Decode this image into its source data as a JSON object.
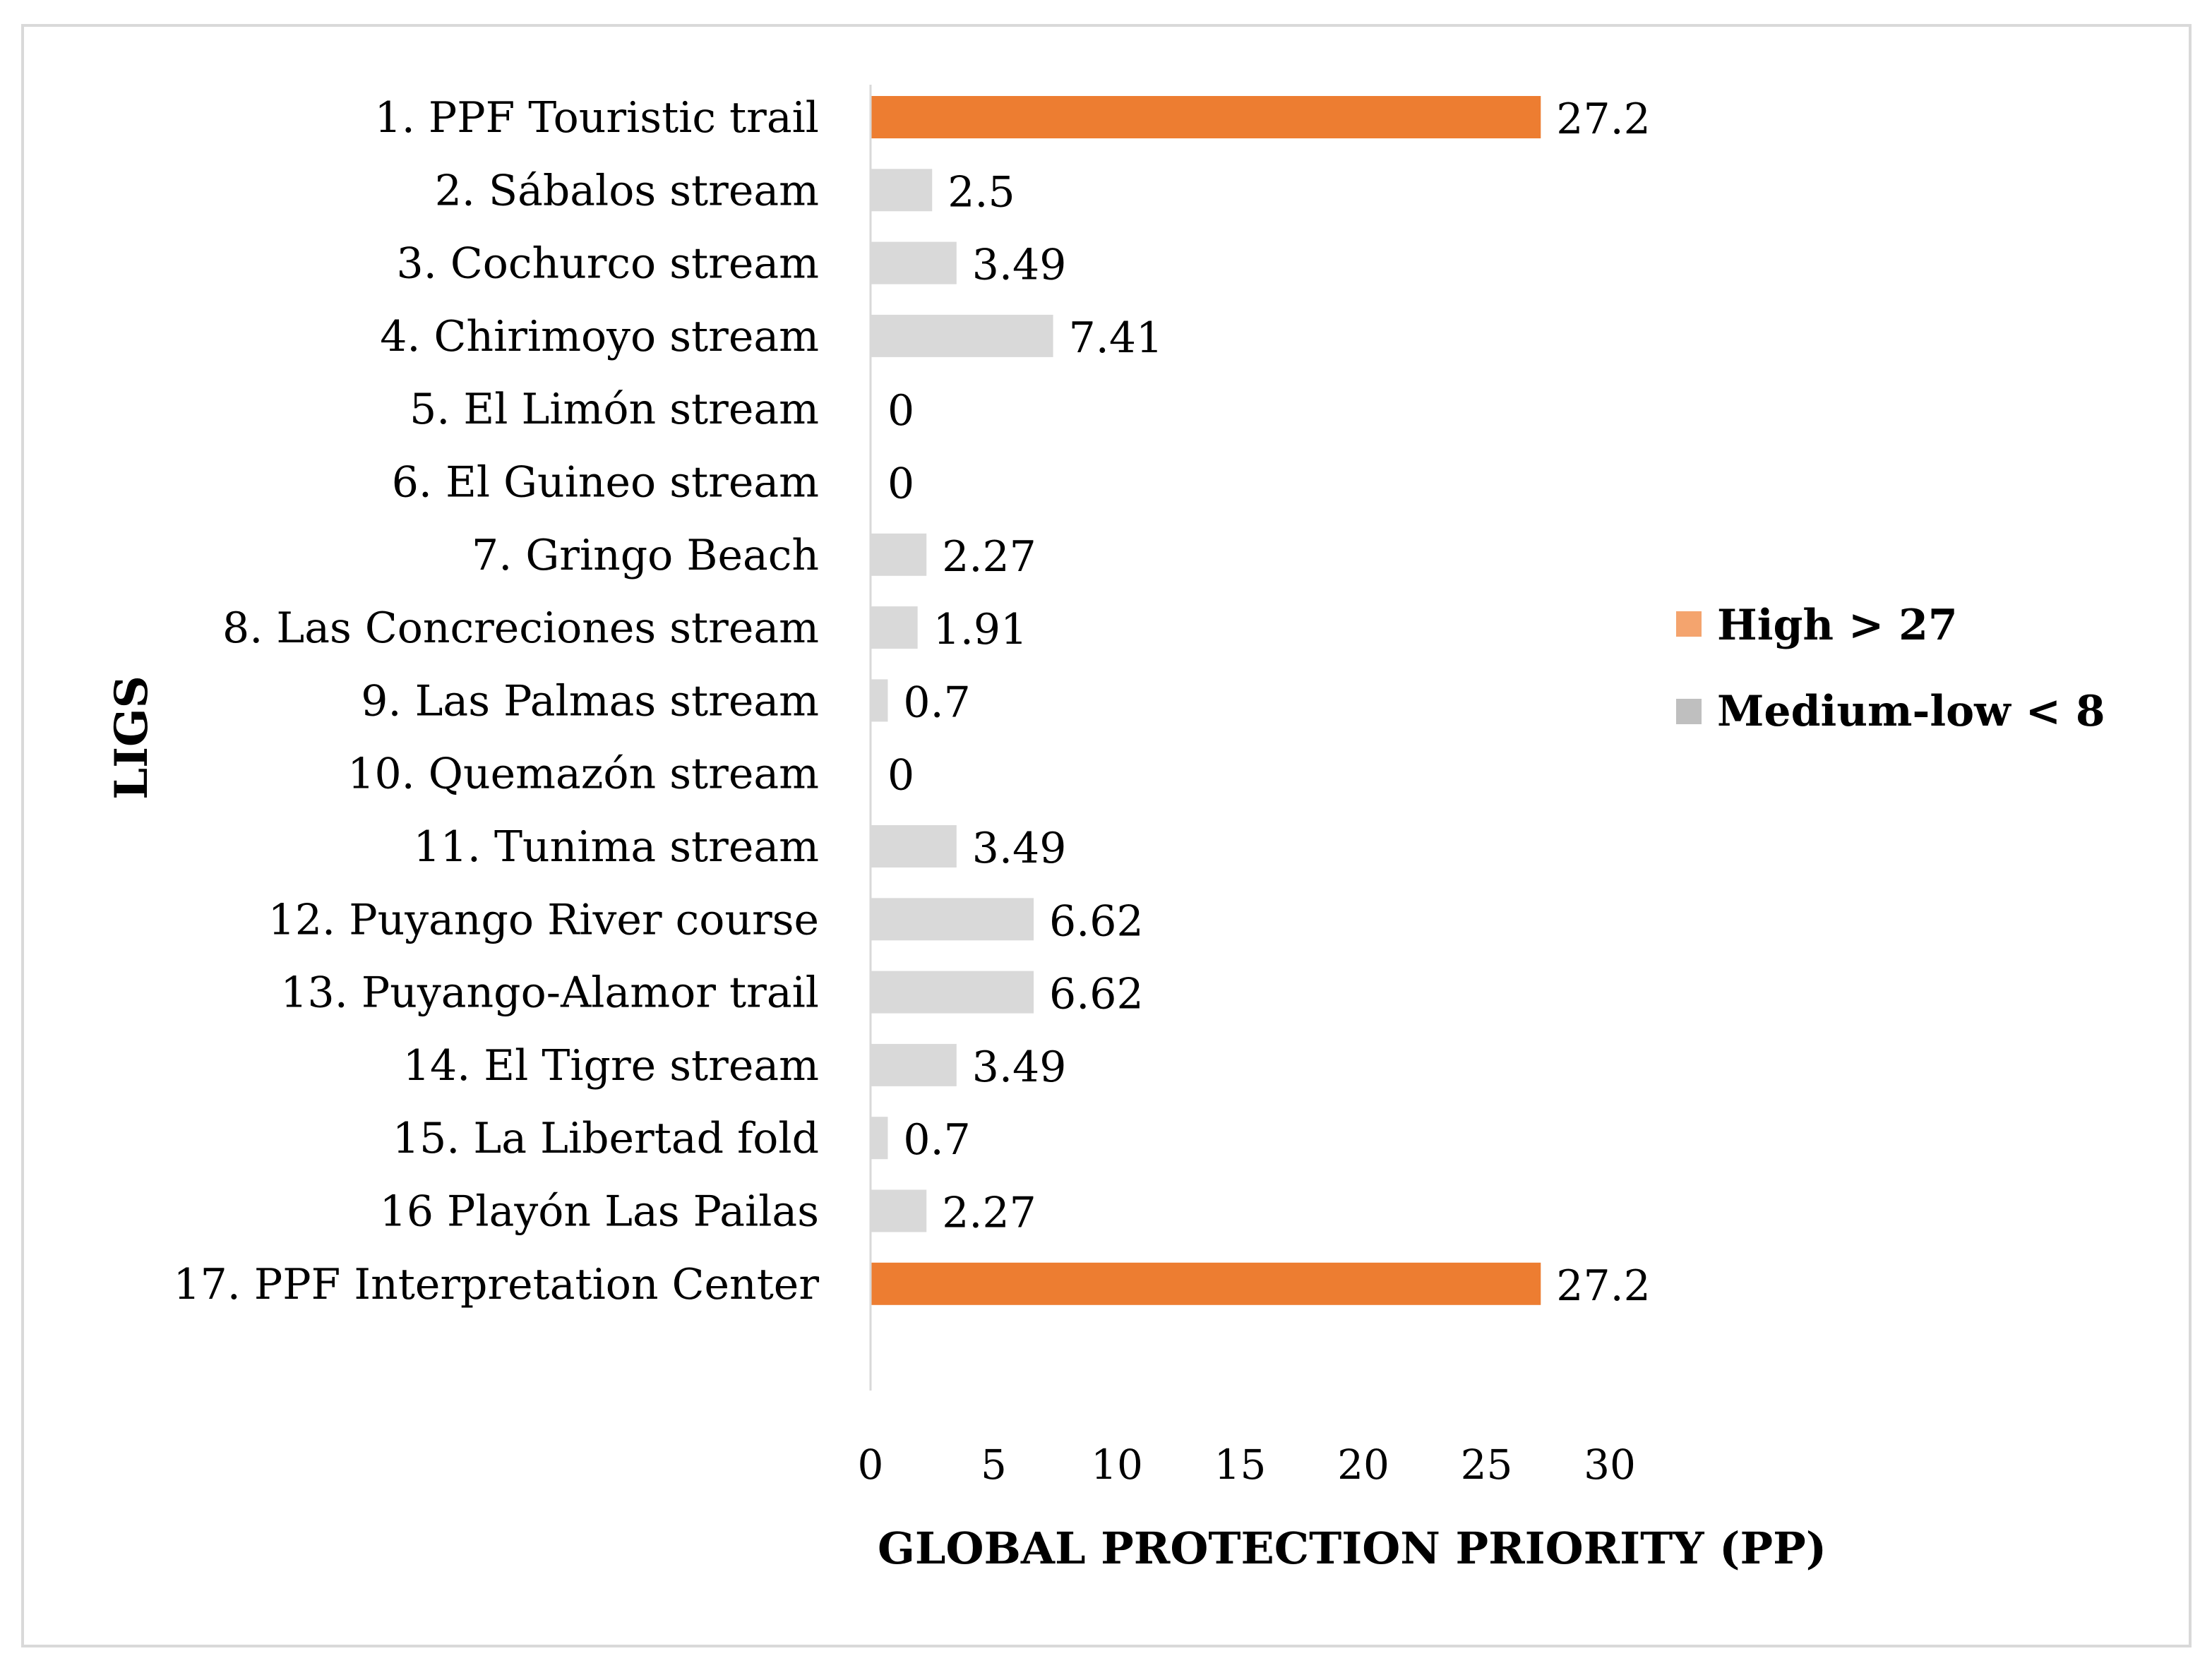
{
  "chart_data": {
    "type": "bar",
    "orientation": "horizontal",
    "ylabel": "LIGS",
    "xlabel": "GLOBAL PROTECTION PRIORITY (PP)",
    "xlim": [
      0,
      30
    ],
    "xticks": [
      "0",
      "5",
      "10",
      "15",
      "20",
      "25",
      "30"
    ],
    "grid": false,
    "legend_position": "right",
    "legend": [
      {
        "label": "High > 27",
        "color": "#F4A46E"
      },
      {
        "label": "Medium-low < 8",
        "color": "#BFBFBF"
      }
    ],
    "categories": [
      "1. PPF Touristic trail",
      "2. Sábalos stream",
      "3. Cochurco stream",
      "4. Chirimoyo stream",
      "5. El Limón stream",
      "6. El Guineo stream",
      "7. Gringo Beach",
      "8. Las Concreciones stream",
      "9. Las Palmas stream",
      "10. Quemazón stream",
      "11. Tunima stream",
      "12. Puyango River course",
      "13. Puyango-Alamor trail",
      "14. El Tigre stream",
      "15. La Libertad fold",
      "16 Playón Las Pailas",
      "17. PPF Interpretation Center"
    ],
    "values": [
      27.2,
      2.5,
      3.49,
      7.41,
      0,
      0,
      2.27,
      1.91,
      0.7,
      0,
      3.49,
      6.62,
      6.62,
      3.49,
      0.7,
      2.27,
      27.2
    ],
    "value_labels": [
      "27.2",
      "2.5",
      "3.49",
      "7.41",
      "0",
      "0",
      "2.27",
      "1.91",
      "0.7",
      "0",
      "3.49",
      "6.62",
      "6.62",
      "3.49",
      "0.7",
      "2.27",
      "27.2"
    ],
    "series_groups": [
      "high",
      "low",
      "low",
      "low",
      "low",
      "low",
      "low",
      "low",
      "low",
      "low",
      "low",
      "low",
      "low",
      "low",
      "low",
      "low",
      "high"
    ],
    "colors": {
      "high": "#ED7D31",
      "low": "#D9D9D9",
      "axis": "#D9D9D9",
      "frame": "#D9D9D9",
      "text": "#000000"
    }
  }
}
